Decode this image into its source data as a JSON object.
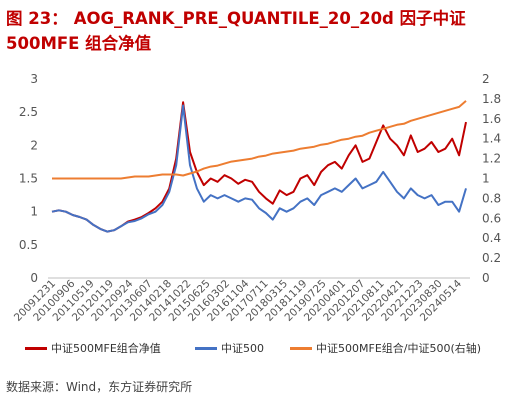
{
  "title": {
    "figure_label": "图 23：",
    "text_line1": "AOG_RANK_PRE_QUANTILE_20_20d 因子中证",
    "text_line2": "500MFE 组合净值"
  },
  "source": "数据来源：Wind，东方证券研究所",
  "colors": {
    "title": "#c00000",
    "portfolio": "#c00000",
    "index": "#4472c4",
    "ratio": "#ed7d31",
    "axis_text": "#555555"
  },
  "chart_data": {
    "type": "line",
    "x_tick_labels": [
      "20091231",
      "20100906",
      "20110519",
      "20120119",
      "20120924",
      "20130607",
      "20140218",
      "20141022",
      "20150625",
      "20160302",
      "20161104",
      "20170711",
      "20180315",
      "20181119",
      "20190725",
      "20200401",
      "20201207",
      "20210811",
      "20220421",
      "20221223",
      "20230830",
      "20240514"
    ],
    "ylim_left": [
      0,
      3
    ],
    "yticks_left": [
      "0",
      "0.5",
      "1",
      "1.5",
      "2",
      "2.5",
      "3"
    ],
    "ylim_right": [
      0,
      2
    ],
    "yticks_right": [
      "0",
      "0.2",
      "0.4",
      "0.6",
      "0.8",
      "1",
      "1.2",
      "1.4",
      "1.6",
      "1.8",
      "2"
    ],
    "series": [
      {
        "name": "中证500MFE组合净值",
        "axis": "left",
        "color": "#c00000",
        "x": [
          0,
          1,
          2,
          3,
          4,
          5,
          6,
          7,
          8,
          9,
          10,
          11,
          12,
          13,
          14,
          15,
          16,
          17,
          18,
          19,
          20,
          21,
          22,
          23,
          24,
          25,
          26,
          27,
          28,
          29,
          30,
          31,
          32,
          33,
          34,
          35,
          36,
          37,
          38,
          39,
          40,
          41,
          42,
          43,
          44,
          45,
          46,
          47,
          48,
          49,
          50,
          51,
          52,
          53,
          54,
          55,
          56,
          57,
          58,
          59,
          60
        ],
        "values": [
          1.0,
          1.02,
          1.0,
          0.95,
          0.92,
          0.88,
          0.8,
          0.74,
          0.7,
          0.72,
          0.78,
          0.85,
          0.88,
          0.92,
          0.98,
          1.05,
          1.15,
          1.35,
          1.8,
          2.65,
          1.9,
          1.6,
          1.4,
          1.5,
          1.45,
          1.55,
          1.5,
          1.42,
          1.48,
          1.45,
          1.3,
          1.2,
          1.12,
          1.32,
          1.25,
          1.3,
          1.5,
          1.55,
          1.4,
          1.6,
          1.7,
          1.75,
          1.65,
          1.85,
          2.0,
          1.75,
          1.8,
          2.05,
          2.3,
          2.1,
          2.0,
          1.85,
          2.15,
          1.9,
          1.95,
          2.05,
          1.9,
          1.95,
          2.1,
          1.85,
          2.35
        ]
      },
      {
        "name": "中证500",
        "axis": "left",
        "color": "#4472c4",
        "x": [
          0,
          1,
          2,
          3,
          4,
          5,
          6,
          7,
          8,
          9,
          10,
          11,
          12,
          13,
          14,
          15,
          16,
          17,
          18,
          19,
          20,
          21,
          22,
          23,
          24,
          25,
          26,
          27,
          28,
          29,
          30,
          31,
          32,
          33,
          34,
          35,
          36,
          37,
          38,
          39,
          40,
          41,
          42,
          43,
          44,
          45,
          46,
          47,
          48,
          49,
          50,
          51,
          52,
          53,
          54,
          55,
          56,
          57,
          58,
          59,
          60
        ],
        "values": [
          1.0,
          1.02,
          1.0,
          0.95,
          0.92,
          0.88,
          0.8,
          0.74,
          0.7,
          0.72,
          0.78,
          0.84,
          0.86,
          0.9,
          0.96,
          1.0,
          1.1,
          1.3,
          1.7,
          2.6,
          1.7,
          1.35,
          1.15,
          1.25,
          1.2,
          1.25,
          1.2,
          1.15,
          1.2,
          1.18,
          1.05,
          0.98,
          0.88,
          1.05,
          1.0,
          1.05,
          1.15,
          1.2,
          1.1,
          1.25,
          1.3,
          1.35,
          1.3,
          1.4,
          1.5,
          1.35,
          1.4,
          1.45,
          1.6,
          1.45,
          1.3,
          1.2,
          1.35,
          1.25,
          1.2,
          1.25,
          1.1,
          1.15,
          1.15,
          1.0,
          1.35
        ]
      },
      {
        "name": "中证500MFE组合/中证500(右轴)",
        "axis": "right",
        "color": "#ed7d31",
        "x": [
          0,
          1,
          2,
          3,
          4,
          5,
          6,
          7,
          8,
          9,
          10,
          11,
          12,
          13,
          14,
          15,
          16,
          17,
          18,
          19,
          20,
          21,
          22,
          23,
          24,
          25,
          26,
          27,
          28,
          29,
          30,
          31,
          32,
          33,
          34,
          35,
          36,
          37,
          38,
          39,
          40,
          41,
          42,
          43,
          44,
          45,
          46,
          47,
          48,
          49,
          50,
          51,
          52,
          53,
          54,
          55,
          56,
          57,
          58,
          59,
          60
        ],
        "values": [
          1.0,
          1.0,
          1.0,
          1.0,
          1.0,
          1.0,
          1.0,
          1.0,
          1.0,
          1.0,
          1.0,
          1.01,
          1.02,
          1.02,
          1.02,
          1.03,
          1.04,
          1.04,
          1.04,
          1.03,
          1.05,
          1.07,
          1.1,
          1.12,
          1.13,
          1.15,
          1.17,
          1.18,
          1.19,
          1.2,
          1.22,
          1.23,
          1.25,
          1.26,
          1.27,
          1.28,
          1.3,
          1.31,
          1.32,
          1.34,
          1.35,
          1.37,
          1.39,
          1.4,
          1.42,
          1.43,
          1.46,
          1.48,
          1.5,
          1.52,
          1.54,
          1.55,
          1.58,
          1.6,
          1.62,
          1.64,
          1.66,
          1.68,
          1.7,
          1.72,
          1.78
        ]
      }
    ],
    "legend_position": "bottom",
    "grid": false
  }
}
